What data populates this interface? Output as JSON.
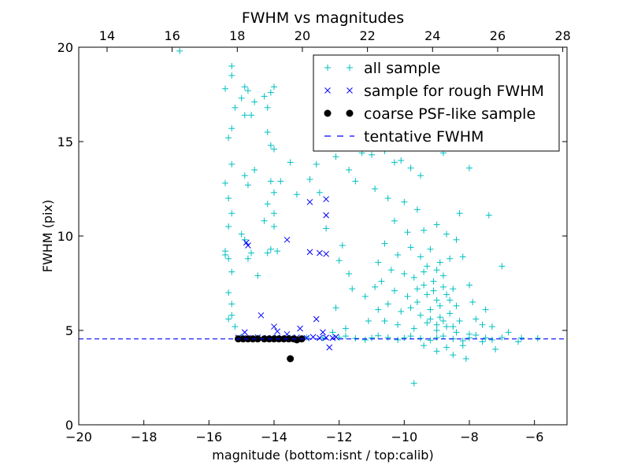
{
  "chart_data": {
    "type": "scatter",
    "title": "FWHM vs magnitudes",
    "xlabel": "magnitude (bottom:isnt / top:calib)",
    "ylabel": "FWHM (pix)",
    "xlim": [
      -20,
      -5
    ],
    "ylim": [
      0,
      20
    ],
    "top_axis_offset": 33.13,
    "x_ticks": [
      "−20",
      "−18",
      "−16",
      "−14",
      "−12",
      "−10",
      "−8",
      "−6"
    ],
    "x_tick_values": [
      -20,
      -18,
      -16,
      -14,
      -12,
      -10,
      -8,
      -6
    ],
    "top_ticks": [
      "14",
      "16",
      "18",
      "20",
      "22",
      "24",
      "26",
      "28"
    ],
    "top_tick_values": [
      14,
      16,
      18,
      20,
      22,
      24,
      26,
      28
    ],
    "y_ticks": [
      "0",
      "5",
      "10",
      "15",
      "20"
    ],
    "y_tick_values": [
      0,
      5,
      10,
      15,
      20
    ],
    "legend_placement": "top-right",
    "colors": {
      "all": "#00bfbf",
      "rough": "#0000ff",
      "coarse": "#000000",
      "tentative": "#0000ff",
      "gray": "#808080"
    },
    "series": [
      {
        "name": "all sample",
        "marker": "plus",
        "points": [
          [
            -16.9,
            19.8
          ],
          [
            -15.3,
            19
          ],
          [
            -15.3,
            18.5
          ],
          [
            -15.5,
            17.8
          ],
          [
            -15.2,
            16.8
          ],
          [
            -15.3,
            15.7
          ],
          [
            -15.4,
            15.2
          ],
          [
            -15.3,
            13.8
          ],
          [
            -15.5,
            12.8
          ],
          [
            -15.4,
            12
          ],
          [
            -15.3,
            11.2
          ],
          [
            -15.4,
            10.5
          ],
          [
            -15.5,
            9.2
          ],
          [
            -15.4,
            8.8
          ],
          [
            -15.3,
            8.1
          ],
          [
            -15.4,
            7
          ],
          [
            -15.3,
            6.4
          ],
          [
            -15.3,
            5.8
          ],
          [
            -15.4,
            5.6
          ],
          [
            -15.5,
            9
          ],
          [
            -15.2,
            5.2
          ],
          [
            -14.9,
            17.9
          ],
          [
            -14.8,
            17.7
          ],
          [
            -15.0,
            17.3
          ],
          [
            -14.6,
            17.1
          ],
          [
            -14.3,
            17.4
          ],
          [
            -14.2,
            16.8
          ],
          [
            -14.1,
            17.6
          ],
          [
            -14.0,
            17.9
          ],
          [
            -14.9,
            16.4
          ],
          [
            -14.7,
            16.4
          ],
          [
            -14.2,
            15.5
          ],
          [
            -14.1,
            14.8
          ],
          [
            -14.0,
            14.6
          ],
          [
            -14.1,
            12.9
          ],
          [
            -13.8,
            12.9
          ],
          [
            -14.0,
            12.3
          ],
          [
            -14.2,
            11.7
          ],
          [
            -14.0,
            11.2
          ],
          [
            -14.3,
            10.8
          ],
          [
            -14.0,
            10.5
          ],
          [
            -14.1,
            9.3
          ],
          [
            -13.9,
            9.2
          ],
          [
            -14.2,
            9.1
          ],
          [
            -13.5,
            13.9
          ],
          [
            -14.9,
            13.2
          ],
          [
            -14.8,
            12.7
          ],
          [
            -14.6,
            13.5
          ],
          [
            -15.0,
            10.1
          ],
          [
            -14.9,
            9.8
          ],
          [
            -14.8,
            8.8
          ],
          [
            -14.5,
            7.9
          ],
          [
            -14.7,
            9.1
          ],
          [
            -13.3,
            12.2
          ],
          [
            -12.9,
            13
          ],
          [
            -12.7,
            13.8
          ],
          [
            -12.6,
            12.3
          ],
          [
            -12.4,
            10.4
          ],
          [
            -12.1,
            14.2
          ],
          [
            -11.7,
            13.5
          ],
          [
            -11.5,
            12.9
          ],
          [
            -11.9,
            9.5
          ],
          [
            -12.0,
            8.7
          ],
          [
            -11.7,
            8
          ],
          [
            -11.6,
            7.2
          ],
          [
            -12.1,
            6.2
          ],
          [
            -11.2,
            6.8
          ],
          [
            -10.9,
            7.3
          ],
          [
            -10.8,
            6.1
          ],
          [
            -11.1,
            5.5
          ],
          [
            -11.8,
            5.1
          ],
          [
            -12.2,
            4.9
          ],
          [
            -11.3,
            14.4
          ],
          [
            -11.0,
            14.3
          ],
          [
            -10.6,
            14.5
          ],
          [
            -10.3,
            13.9
          ],
          [
            -10.1,
            14.0
          ],
          [
            -9.8,
            13.6
          ],
          [
            -9.5,
            13.2
          ],
          [
            -8.8,
            14.4
          ],
          [
            -8.3,
            11.2
          ],
          [
            -8.0,
            13.6
          ],
          [
            -7.4,
            11.1
          ],
          [
            -7.0,
            8.4
          ],
          [
            -6.8,
            4.9
          ],
          [
            -7.6,
            5.3
          ],
          [
            -8.5,
            3.7
          ],
          [
            -9.7,
            2.2
          ],
          [
            -8.1,
            3.5
          ],
          [
            -6.5,
            4.4
          ],
          [
            -10.9,
            12.5
          ],
          [
            -10.5,
            12.0
          ],
          [
            -10.0,
            11.8
          ],
          [
            -9.6,
            11.4
          ],
          [
            -10.3,
            10.8
          ],
          [
            -9.9,
            10.2
          ],
          [
            -9.4,
            10.3
          ],
          [
            -9.0,
            10.6
          ],
          [
            -8.7,
            10.1
          ],
          [
            -8.4,
            9.8
          ],
          [
            -10.6,
            9.6
          ],
          [
            -10.2,
            9.0
          ],
          [
            -9.8,
            9.4
          ],
          [
            -9.5,
            8.9
          ],
          [
            -9.2,
            9.3
          ],
          [
            -8.9,
            8.6
          ],
          [
            -8.6,
            8.8
          ],
          [
            -8.2,
            8.9
          ],
          [
            -10.8,
            8.6
          ],
          [
            -10.4,
            8.2
          ],
          [
            -10.0,
            8.0
          ],
          [
            -9.7,
            7.8
          ],
          [
            -9.4,
            8.1
          ],
          [
            -9.1,
            7.6
          ],
          [
            -8.8,
            7.9
          ],
          [
            -8.5,
            7.2
          ],
          [
            -8.0,
            7.4
          ],
          [
            -10.7,
            7.6
          ],
          [
            -10.3,
            7.1
          ],
          [
            -9.9,
            6.8
          ],
          [
            -9.6,
            7.2
          ],
          [
            -9.3,
            6.9
          ],
          [
            -9.0,
            6.6
          ],
          [
            -8.7,
            6.9
          ],
          [
            -8.4,
            6.3
          ],
          [
            -7.9,
            6.5
          ],
          [
            -7.5,
            6.1
          ],
          [
            -10.5,
            6.4
          ],
          [
            -10.1,
            6.0
          ],
          [
            -9.8,
            6.2
          ],
          [
            -9.5,
            5.8
          ],
          [
            -9.2,
            6.1
          ],
          [
            -8.9,
            5.7
          ],
          [
            -8.6,
            5.9
          ],
          [
            -8.3,
            5.5
          ],
          [
            -7.8,
            5.6
          ],
          [
            -7.3,
            5.2
          ],
          [
            -10.6,
            5.5
          ],
          [
            -10.2,
            5.3
          ],
          [
            -9.7,
            5.1
          ],
          [
            -9.3,
            5.4
          ],
          [
            -9.0,
            5.0
          ],
          [
            -8.7,
            5.2
          ],
          [
            -8.4,
            4.9
          ],
          [
            -8.0,
            4.8
          ],
          [
            -7.6,
            4.4
          ],
          [
            -7.2,
            4.0
          ],
          [
            -9.4,
            4.2
          ],
          [
            -9.0,
            3.9
          ],
          [
            -8.7,
            4.1
          ],
          [
            -8.2,
            4.2
          ],
          [
            -9.3,
            8.4
          ],
          [
            -9.1,
            7.1
          ],
          [
            -8.9,
            6.3
          ],
          [
            -9.2,
            5.6
          ],
          [
            -9.0,
            5.3
          ],
          [
            -8.8,
            5.5
          ],
          [
            -8.6,
            6.6
          ],
          [
            -8.8,
            7.3
          ],
          [
            -9.4,
            7.4
          ],
          [
            -9.6,
            6.5
          ],
          [
            -9.0,
            8.2
          ],
          [
            -8.5,
            5.2
          ],
          [
            -15.0,
            4.65
          ],
          [
            -14.5,
            4.6
          ],
          [
            -14.0,
            4.62
          ],
          [
            -13.5,
            4.6
          ],
          [
            -13.0,
            4.63
          ],
          [
            -12.5,
            4.6
          ],
          [
            -12.0,
            4.62
          ],
          [
            -11.5,
            4.58
          ],
          [
            -11.0,
            4.6
          ],
          [
            -10.5,
            4.62
          ],
          [
            -10.0,
            4.6
          ],
          [
            -9.5,
            4.58
          ],
          [
            -9.0,
            4.62
          ],
          [
            -8.5,
            4.55
          ],
          [
            -8.0,
            4.6
          ],
          [
            -7.5,
            4.6
          ],
          [
            -7.0,
            4.62
          ],
          [
            -6.4,
            4.6
          ],
          [
            -5.9,
            4.58
          ],
          [
            -11.8,
            4.7
          ],
          [
            -11.2,
            4.5
          ],
          [
            -10.8,
            4.72
          ],
          [
            -10.2,
            4.5
          ],
          [
            -9.8,
            4.7
          ],
          [
            -9.2,
            4.48
          ],
          [
            -8.8,
            4.7
          ],
          [
            -8.2,
            4.45
          ],
          [
            -7.8,
            4.75
          ],
          [
            -7.3,
            4.5
          ]
        ]
      },
      {
        "name": "sample for rough FWHM",
        "marker": "x",
        "points": [
          [
            -14.85,
            9.65
          ],
          [
            -14.8,
            9.5
          ],
          [
            -14.4,
            5.8
          ],
          [
            -14.0,
            5.2
          ],
          [
            -13.6,
            9.8
          ],
          [
            -13.2,
            5.1
          ],
          [
            -12.9,
            9.15
          ],
          [
            -12.9,
            11.8
          ],
          [
            -12.6,
            9.1
          ],
          [
            -12.4,
            11.95
          ],
          [
            -12.4,
            11.1
          ],
          [
            -12.4,
            9.05
          ],
          [
            -12.7,
            5.6
          ],
          [
            -12.3,
            4.1
          ],
          [
            -14.9,
            4.9
          ],
          [
            -13.9,
            4.95
          ],
          [
            -13.6,
            4.8
          ],
          [
            -12.5,
            4.9
          ],
          [
            -15.1,
            4.62
          ],
          [
            -14.8,
            4.6
          ],
          [
            -14.5,
            4.63
          ],
          [
            -14.2,
            4.6
          ],
          [
            -13.9,
            4.62
          ],
          [
            -13.6,
            4.6
          ],
          [
            -13.3,
            4.63
          ],
          [
            -13.0,
            4.6
          ],
          [
            -12.8,
            4.65
          ],
          [
            -12.6,
            4.6
          ],
          [
            -12.4,
            4.62
          ],
          [
            -12.2,
            4.6
          ],
          [
            -12.1,
            4.65
          ]
        ]
      },
      {
        "name": "coarse PSF-like sample",
        "marker": "circle",
        "points": [
          [
            -15.1,
            4.55
          ],
          [
            -14.95,
            4.55
          ],
          [
            -14.8,
            4.55
          ],
          [
            -14.65,
            4.55
          ],
          [
            -14.5,
            4.55
          ],
          [
            -14.3,
            4.55
          ],
          [
            -14.15,
            4.55
          ],
          [
            -14.0,
            4.55
          ],
          [
            -13.85,
            4.55
          ],
          [
            -13.7,
            4.55
          ],
          [
            -13.55,
            4.55
          ],
          [
            -13.4,
            4.55
          ],
          [
            -13.3,
            4.5
          ],
          [
            -13.15,
            4.55
          ],
          [
            -13.5,
            3.5
          ]
        ]
      }
    ],
    "tentative_fwhm": {
      "name": "tentative FWHM",
      "value": 4.55
    }
  }
}
